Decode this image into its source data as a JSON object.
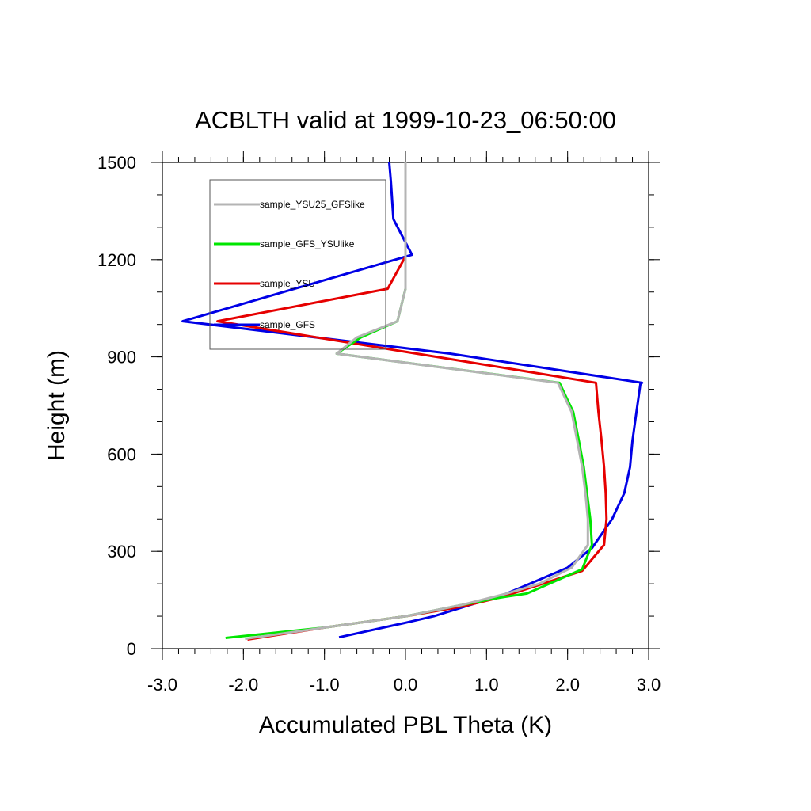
{
  "chart_data": {
    "type": "line",
    "title": "ACBLTH valid at 1999-10-23_06:50:00",
    "xlabel": "Accumulated PBL Theta (K)",
    "ylabel": "Height (m)",
    "xlim": [
      -3.0,
      3.0
    ],
    "ylim": [
      0,
      1500
    ],
    "xticks": [
      -3.0,
      -2.0,
      -1.0,
      0.0,
      1.0,
      2.0,
      3.0
    ],
    "xtick_labels": [
      "-3.0",
      "-2.0",
      "-1.0",
      "0.0",
      "1.0",
      "2.0",
      "3.0"
    ],
    "yticks": [
      0,
      300,
      600,
      900,
      1200,
      1500
    ],
    "ytick_labels": [
      "0",
      "300",
      "600",
      "900",
      "1200",
      "1500"
    ],
    "grid": false,
    "legend_position": "top-left",
    "series": [
      {
        "name": "sample_YSU25_GFSlike",
        "color": "#b4b4b4",
        "x": [
          -1.98,
          -1.0,
          0.0,
          0.7,
          1.25,
          1.65,
          2.05,
          2.25,
          2.25,
          2.22,
          2.18,
          2.12,
          2.05,
          1.88,
          -0.85,
          -0.6,
          -0.1,
          0.0,
          0.0,
          0.0,
          0.0,
          0.0
        ],
        "y": [
          30,
          65,
          100,
          135,
          170,
          200,
          250,
          320,
          400,
          480,
          560,
          640,
          730,
          820,
          910,
          960,
          1010,
          1110,
          1210,
          1320,
          1420,
          1500
        ]
      },
      {
        "name": "sample_GFS_YSUlike",
        "color": "#00e600",
        "x": [
          -2.22,
          -1.0,
          0.0,
          0.6,
          1.1,
          1.5,
          2.18,
          2.3,
          2.28,
          2.24,
          2.2,
          2.14,
          2.07,
          1.9,
          -0.85,
          -0.55,
          -0.1,
          0.0,
          0.0,
          0.0,
          0.0,
          0.0
        ],
        "y": [
          33,
          65,
          100,
          130,
          155,
          170,
          245,
          320,
          400,
          480,
          560,
          640,
          730,
          820,
          910,
          960,
          1010,
          1110,
          1210,
          1320,
          1420,
          1500
        ]
      },
      {
        "name": "sample_YSU",
        "color": "#e60000",
        "x": [
          -1.95,
          -1.0,
          0.0,
          0.7,
          1.2,
          2.18,
          2.45,
          2.48,
          2.47,
          2.45,
          2.42,
          2.38,
          2.35,
          -2.32,
          -0.22,
          0.0
        ],
        "y": [
          28,
          65,
          100,
          130,
          160,
          240,
          320,
          400,
          480,
          560,
          640,
          730,
          820,
          1010,
          1110,
          1210
        ]
      },
      {
        "name": "sample_GFS",
        "color": "#0000e6",
        "x": [
          -0.82,
          0.0,
          0.35,
          1.25,
          2.0,
          2.3,
          2.55,
          2.7,
          2.77,
          2.8,
          2.85,
          2.9,
          2.92,
          0.55,
          -2.75,
          0.08,
          -0.15,
          -0.18,
          -0.2
        ],
        "y": [
          35,
          80,
          100,
          170,
          250,
          310,
          400,
          480,
          560,
          640,
          730,
          820,
          820,
          910,
          1010,
          1215,
          1325,
          1440,
          1500
        ]
      }
    ]
  }
}
